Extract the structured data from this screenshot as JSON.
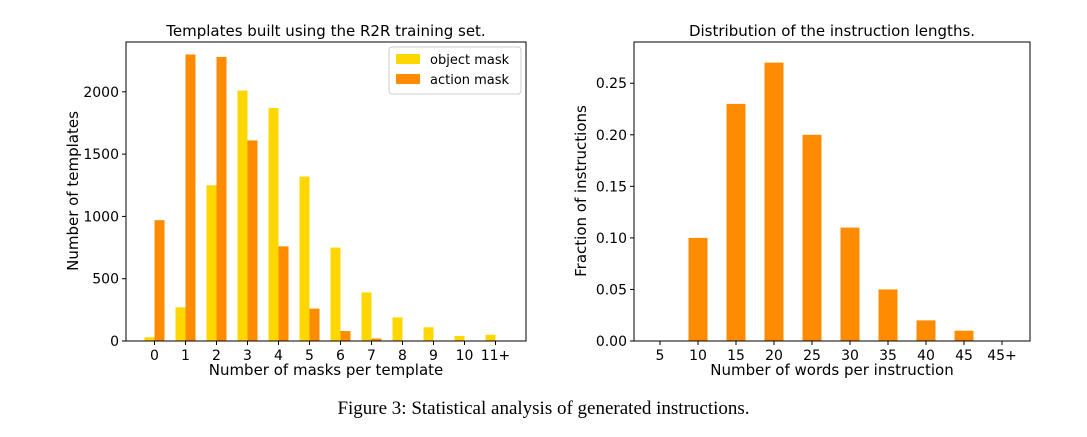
{
  "figure": {
    "caption": "Figure 3: Statistical analysis of generated instructions."
  },
  "chart_data": [
    {
      "type": "bar",
      "title": "Templates built using the R2R training set.",
      "xlabel": "Number of masks per template",
      "ylabel": "Number of templates",
      "categories": [
        "0",
        "1",
        "2",
        "3",
        "4",
        "5",
        "6",
        "7",
        "8",
        "9",
        "10",
        "11+"
      ],
      "series": [
        {
          "name": "object mask",
          "color": "#FFD700",
          "values": [
            30,
            270,
            1250,
            2010,
            1870,
            1320,
            750,
            390,
            190,
            110,
            40,
            50
          ]
        },
        {
          "name": "action mask",
          "color": "#FF8C00",
          "values": [
            970,
            2300,
            2280,
            1610,
            760,
            260,
            80,
            20,
            0,
            0,
            0,
            0
          ]
        }
      ],
      "ylim": [
        0,
        2400
      ],
      "yticks": [
        0,
        500,
        1000,
        1500,
        2000
      ],
      "ytick_labels": [
        "0",
        "500",
        "1000",
        "1500",
        "2000"
      ],
      "legend": "top-right",
      "grid": false
    },
    {
      "type": "bar",
      "title": "Distribution of the instruction lengths.",
      "xlabel": "Number of words per instruction",
      "ylabel": "Fraction of instructions",
      "categories": [
        "5",
        "10",
        "15",
        "20",
        "25",
        "30",
        "35",
        "40",
        "45",
        "45+"
      ],
      "series": [
        {
          "color": "#FF8C00",
          "values": [
            0,
            0.1,
            0.23,
            0.27,
            0.2,
            0.11,
            0.05,
            0.02,
            0.01,
            0
          ]
        }
      ],
      "ylim": [
        0,
        0.29
      ],
      "yticks": [
        0,
        0.05,
        0.1,
        0.15,
        0.2,
        0.25
      ],
      "ytick_labels": [
        "0.00",
        "0.05",
        "0.10",
        "0.15",
        "0.20",
        "0.25"
      ],
      "legend": "none",
      "grid": false
    }
  ]
}
